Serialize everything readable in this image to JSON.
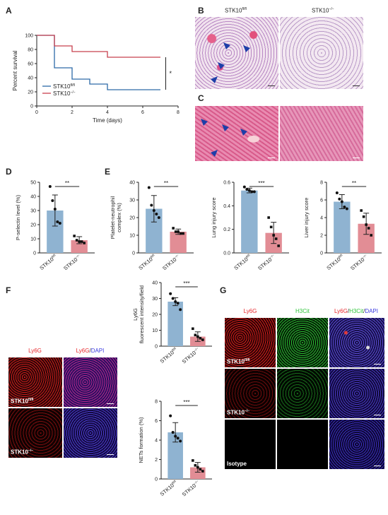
{
  "colors": {
    "blue_bar": "#8fb3d1",
    "red_bar": "#e28d95",
    "flfl_line": "#2d6aa8",
    "ko_line": "#c8404e",
    "ly6g_red": "#e8262b",
    "h3cit_green": "#2ec53a",
    "dapi_blue": "#3a3ae0"
  },
  "labels": {
    "a": "A",
    "b": "B",
    "c": "C",
    "d": "D",
    "e": "E",
    "f": "F",
    "g": "G"
  },
  "panel_b": {
    "col1": "STK10",
    "col1_sup": "fl/fl",
    "col2": "STK10",
    "col2_sup": "−/−"
  },
  "panel_f": {
    "ly6g": "Ly6G",
    "merge_a": "Ly6G",
    "merge_slash": "/",
    "merge_b": "DAPI",
    "row1": "STK10",
    "row1_sup": "fl/fl",
    "row2": "STK10",
    "row2_sup": "−/−"
  },
  "panel_g": {
    "ch1": "Ly6G",
    "ch2": "H3Cit",
    "merge_1": "Ly6G",
    "merge_2": "/",
    "merge_3": "H3Cit",
    "merge_4": "/",
    "merge_5": "DAPI",
    "row1": "STK10",
    "row1_sup": "fl/fl",
    "row2": "STK10",
    "row2_sup": "−/−",
    "row3": "Isotype"
  },
  "chart_data": [
    {
      "id": "A",
      "type": "line",
      "xlabel": "Time (days)",
      "ylabel": "Percent survival",
      "xlim": [
        0,
        8
      ],
      "ylim": [
        0,
        100
      ],
      "xticks": [
        0,
        2,
        4,
        6,
        8
      ],
      "yticks": [
        0,
        20,
        40,
        60,
        80,
        100
      ],
      "series": [
        {
          "name": "STK10",
          "name_sup": "fl/fl",
          "color": "#2d6aa8",
          "x": [
            0,
            1,
            1,
            2,
            2,
            3,
            3,
            4,
            4,
            7
          ],
          "y": [
            100,
            100,
            54,
            54,
            38,
            38,
            31,
            31,
            23,
            23
          ]
        },
        {
          "name": "STK10",
          "name_sup": "−/−",
          "color": "#c8404e",
          "x": [
            0,
            1,
            1,
            2,
            2,
            4,
            4,
            7
          ],
          "y": [
            100,
            100,
            85,
            85,
            77,
            77,
            69,
            69
          ]
        }
      ],
      "annotation": "*"
    },
    {
      "id": "D",
      "type": "bar",
      "ylabel": "P-selectin level (%)",
      "ylim": [
        0,
        50
      ],
      "yticks": [
        0,
        10,
        20,
        30,
        40,
        50
      ],
      "categories": [
        "STK10",
        "STK10"
      ],
      "category_sups": [
        "fl/fl",
        "−/−"
      ],
      "values": [
        30,
        9
      ],
      "errors": [
        11,
        2.5
      ],
      "points": [
        [
          47,
          37,
          31,
          22,
          21
        ],
        [
          12,
          9,
          8,
          8,
          7
        ]
      ],
      "significance": "**"
    },
    {
      "id": "E1",
      "type": "bar",
      "ylabel": "Platelet-neutrophil complex (%)",
      "ylim": [
        0,
        40
      ],
      "yticks": [
        0,
        10,
        20,
        30,
        40
      ],
      "categories": [
        "STK10",
        "STK10"
      ],
      "category_sups": [
        "fl/fl",
        "−/−"
      ],
      "values": [
        25,
        12
      ],
      "errors": [
        7.5,
        1.5
      ],
      "points": [
        [
          37,
          27,
          24,
          22,
          20
        ],
        [
          14,
          12,
          12,
          11,
          11
        ]
      ],
      "significance": "**"
    },
    {
      "id": "E2",
      "type": "bar",
      "ylabel": "Lung injury score",
      "ylim": [
        0,
        0.6
      ],
      "yticks": [
        0.0,
        0.2,
        0.4,
        0.6
      ],
      "tick_decimals": 1,
      "categories": [
        "STK10",
        "STK10"
      ],
      "category_sups": [
        "fl/fl",
        "−/−"
      ],
      "values": [
        0.53,
        0.17
      ],
      "errors": [
        0.02,
        0.09
      ],
      "points": [
        [
          0.56,
          0.54,
          0.53,
          0.52,
          0.52
        ],
        [
          0.3,
          0.22,
          0.15,
          0.12,
          0.06
        ]
      ],
      "significance": "***"
    },
    {
      "id": "E3",
      "type": "bar",
      "ylabel": "Liver injury score",
      "ylim": [
        0,
        8
      ],
      "yticks": [
        0,
        2,
        4,
        6,
        8
      ],
      "categories": [
        "STK10",
        "STK10"
      ],
      "category_sups": [
        "fl/fl",
        "−/−"
      ],
      "values": [
        5.8,
        3.3
      ],
      "errors": [
        0.8,
        1.2
      ],
      "points": [
        [
          6.8,
          6.1,
          5.8,
          5.2,
          5.0
        ],
        [
          4.8,
          4.1,
          3.2,
          2.8,
          2.0
        ]
      ],
      "significance": "**"
    },
    {
      "id": "F1",
      "type": "bar",
      "ylabel": "Ly6G fluorescent intensity/field",
      "ylim": [
        0,
        40
      ],
      "yticks": [
        0,
        10,
        20,
        30,
        40
      ],
      "categories": [
        "STK10",
        "STK10"
      ],
      "category_sups": [
        "fl/fl",
        "−/−"
      ],
      "values": [
        28,
        6
      ],
      "errors": [
        2.5,
        3
      ],
      "points": [
        [
          33,
          30,
          28,
          27,
          23
        ],
        [
          11,
          7,
          6,
          5,
          4
        ]
      ],
      "significance": "***"
    },
    {
      "id": "F2",
      "type": "bar",
      "ylabel": "NETs formation (%)",
      "ylim": [
        0,
        8
      ],
      "yticks": [
        0,
        2,
        4,
        6,
        8
      ],
      "categories": [
        "STK10",
        "STK10"
      ],
      "category_sups": [
        "fl/fl",
        "−/−"
      ],
      "values": [
        4.8,
        1.2
      ],
      "errors": [
        1.0,
        0.5
      ],
      "points": [
        [
          6.5,
          4.8,
          4.4,
          4.2,
          3.9
        ],
        [
          1.9,
          1.4,
          1.2,
          1.0,
          0.8
        ]
      ],
      "significance": "***"
    }
  ]
}
